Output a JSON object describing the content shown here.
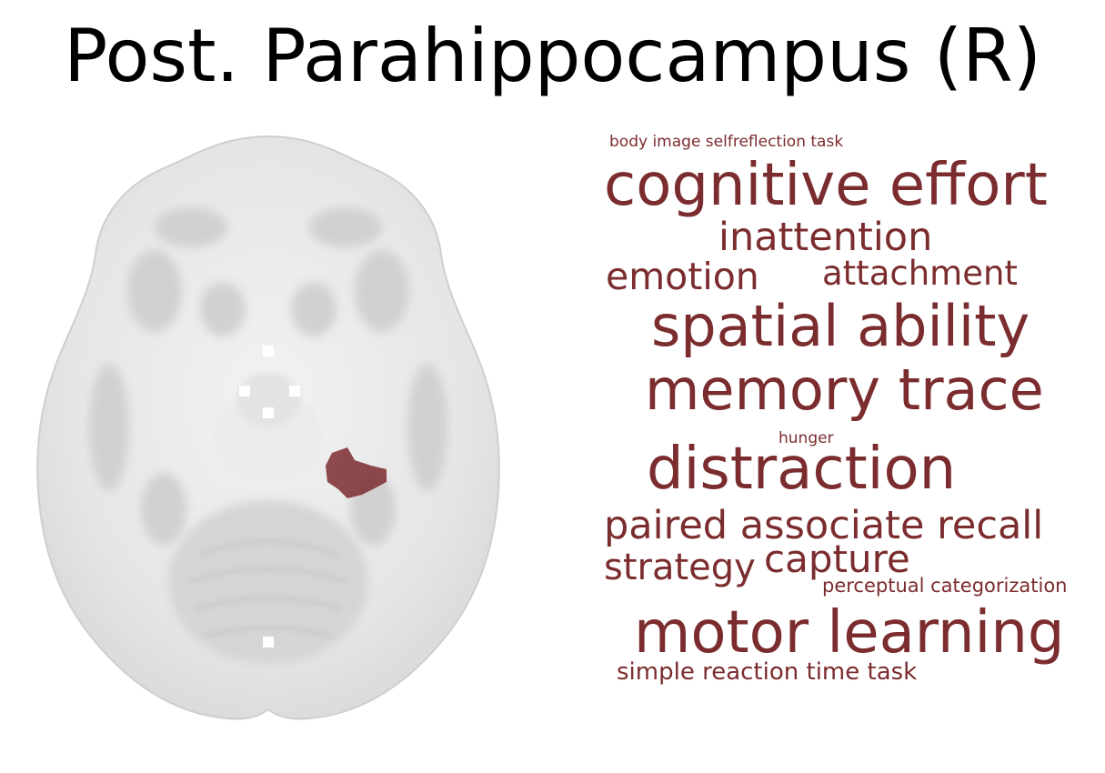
{
  "figure": {
    "title": "Post. Parahippocampus (R)",
    "highlight_color": "#7b2c2e",
    "brain_image": "axial brain slice (grayscale) with highlighted right posterior parahippocampal region"
  },
  "word_cloud": {
    "color": "#7b2c2e",
    "terms": [
      {
        "label": "body image selfreflection task"
      },
      {
        "label": "cognitive effort"
      },
      {
        "label": "inattention"
      },
      {
        "label": "emotion"
      },
      {
        "label": "attachment"
      },
      {
        "label": "spatial ability"
      },
      {
        "label": "memory trace"
      },
      {
        "label": "hunger"
      },
      {
        "label": "distraction"
      },
      {
        "label": "paired associate recall"
      },
      {
        "label": "strategy"
      },
      {
        "label": "capture"
      },
      {
        "label": "perceptual categorization"
      },
      {
        "label": "motor learning"
      },
      {
        "label": "simple reaction time task"
      }
    ]
  }
}
